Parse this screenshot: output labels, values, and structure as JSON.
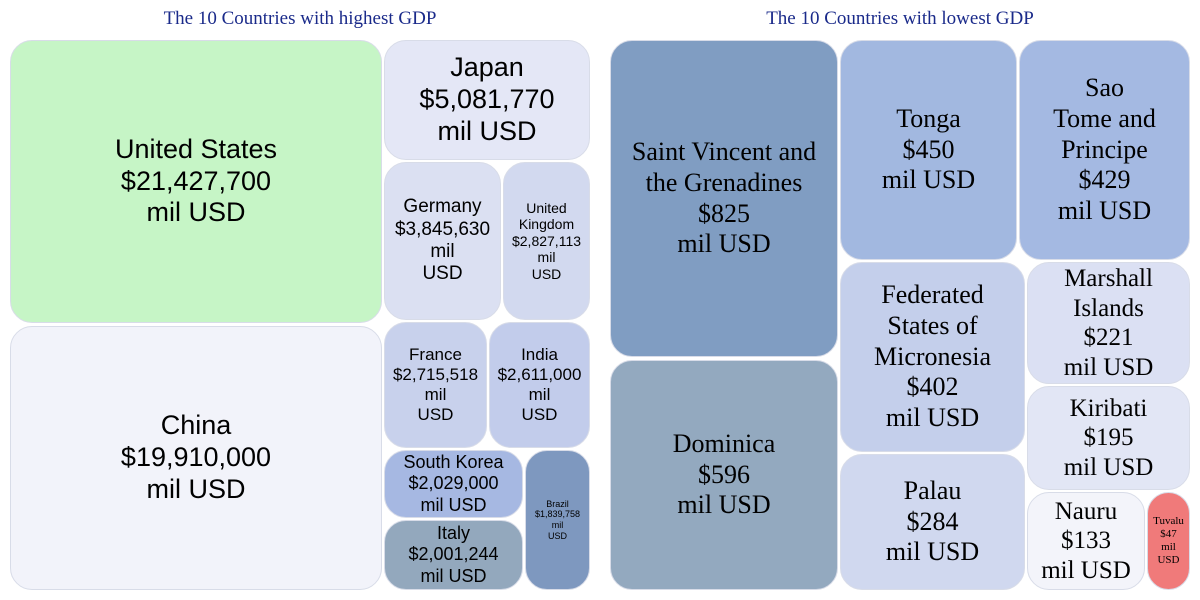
{
  "chart_data": [
    {
      "type": "treemap",
      "title": "The 10 Countries with highest GDP",
      "unit": "mil USD",
      "items": [
        {
          "name": "United States",
          "value": 21427700,
          "value_label": "$21,427,700",
          "color": "#c6f5c6"
        },
        {
          "name": "China",
          "value": 19910000,
          "value_label": "$19,910,000",
          "color": "#f2f3fa"
        },
        {
          "name": "Japan",
          "value": 5081770,
          "value_label": "$5,081,770",
          "color": "#e4e7f6"
        },
        {
          "name": "Germany",
          "value": 3845630,
          "value_label": "$3,845,630",
          "color": "#dbe0f2"
        },
        {
          "name": "United Kingdom",
          "value": 2827113,
          "value_label": "$2,827,113",
          "color": "#d2d9ef"
        },
        {
          "name": "France",
          "value": 2715518,
          "value_label": "$2,715,518",
          "color": "#c8d1ec"
        },
        {
          "name": "India",
          "value": 2611000,
          "value_label": "$2,611,000",
          "color": "#c2cceb"
        },
        {
          "name": "South Korea",
          "value": 2029000,
          "value_label": "$2,029,000",
          "color": "#a6b8e2"
        },
        {
          "name": "Italy",
          "value": 2001244,
          "value_label": "$2,001,244",
          "color": "#93a8bd"
        },
        {
          "name": "Brazil",
          "value": 1839758,
          "value_label": "$1,839,758",
          "color": "#7e98bf"
        }
      ]
    },
    {
      "type": "treemap",
      "title": "The 10 Countries with lowest GDP",
      "unit": "mil USD",
      "items": [
        {
          "name": "Saint Vincent and the Grenadines",
          "value": 825,
          "value_label": "$825",
          "color": "#809dc2"
        },
        {
          "name": "Dominica",
          "value": 596,
          "value_label": "$596",
          "color": "#93a9bf"
        },
        {
          "name": "Tonga",
          "value": 450,
          "value_label": "$450",
          "color": "#a2b8e0"
        },
        {
          "name": "Sao Tome and Principe",
          "value": 429,
          "value_label": "$429",
          "color": "#a4b9e2"
        },
        {
          "name": "Federated States of Micronesia",
          "value": 402,
          "value_label": "$402",
          "color": "#c4cfeb"
        },
        {
          "name": "Palau",
          "value": 284,
          "value_label": "$284",
          "color": "#d0d8ef"
        },
        {
          "name": "Marshall Islands",
          "value": 221,
          "value_label": "$221",
          "color": "#dbe0f3"
        },
        {
          "name": "Kiribati",
          "value": 195,
          "value_label": "$195",
          "color": "#e2e6f5"
        },
        {
          "name": "Nauru",
          "value": 133,
          "value_label": "$133",
          "color": "#f3f4fa"
        },
        {
          "name": "Tuvalu",
          "value": 47,
          "value_label": "$47",
          "color": "#f07a7a"
        }
      ]
    }
  ]
}
